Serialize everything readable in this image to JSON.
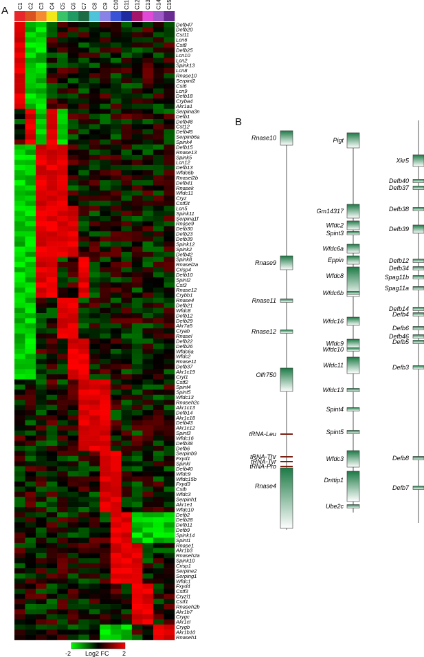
{
  "panels": {
    "a": "A",
    "b": "B"
  },
  "heatmap": {
    "columns": [
      "C1",
      "C2",
      "C3",
      "C4",
      "C5",
      "C6",
      "C7",
      "C8",
      "C9",
      "C10",
      "C11",
      "C12",
      "C13",
      "C14",
      "C15"
    ],
    "column_colors": [
      "#e8262b",
      "#d9521f",
      "#f58a32",
      "#f2e718",
      "#39c46a",
      "#1f9a63",
      "#1c6b44",
      "#4fc3d9",
      "#8a83e6",
      "#3a53d6",
      "#1e2aa0",
      "#a3156b",
      "#e04ad6",
      "#9e5bc8",
      "#6a2b93"
    ],
    "rows": [
      "Defb47",
      "Defb20",
      "Cst11",
      "Lcn6",
      "Cst8",
      "Defb25",
      "Lcn10",
      "Lcn2",
      "Spink13",
      "Lcn8",
      "Rnase10",
      "Serpinf2",
      "Cst6",
      "Lcn9",
      "Defb18",
      "Cryba4",
      "Akr1a1",
      "Serpina3n",
      "Defb1",
      "Defb48",
      "Cst12",
      "Defb45",
      "Serpinb6a",
      "Spink4",
      "Defb15",
      "Rnase13",
      "Spink5",
      "Lcn12",
      "Defb13",
      "Wfdc6b",
      "Rnasel2b",
      "Defb41",
      "Rnasek",
      "Wfdc11",
      "Cryz",
      "Cstf2t",
      "Lcn5",
      "Spink11",
      "Serpina1f",
      "Rnase9",
      "Defb30",
      "Defb23",
      "Defb39",
      "Spink12",
      "Spink2",
      "Defb42",
      "Spink8",
      "Rnasel2a",
      "Crisp4",
      "Defb10",
      "Spint2",
      "Cst3",
      "Rnase12",
      "Crybb1",
      "Rnase4",
      "Defb21",
      "Wfdc8",
      "Defb12",
      "Defb29",
      "Akr7a5",
      "Cryab",
      "Rnasel",
      "Defb22",
      "Defb26",
      "Wfdc6a",
      "Wfdc2",
      "Rnase11",
      "Defb37",
      "Akr1c19",
      "Cryl1",
      "Cstf2",
      "Spint4",
      "Spint5",
      "Wfdc13",
      "Rnaseh2c",
      "Akr1c13",
      "Defb14",
      "Akr1c18",
      "Defb43",
      "Akr1c12",
      "Spint3",
      "Wfdc16",
      "Defb38",
      "Defb6",
      "Serpinb9",
      "Fxyd1",
      "Spinkl",
      "Defb40",
      "Wfdc9",
      "Wfdc15b",
      "Fxyd3",
      "Cstb",
      "Wfdc3",
      "Serpinh1",
      "Akr1e1",
      "Wfdc10",
      "Defb2",
      "Defb28",
      "Defb11",
      "Defb9",
      "Spink14",
      "Spint1",
      "Rnase1",
      "Akr1b3",
      "Rnaseh2a",
      "Spink10",
      "Crisp1",
      "Serpine2",
      "Serping1",
      "Wfdc1",
      "Fxyd4",
      "Cstf3",
      "Cryzl1",
      "Cstf1",
      "Rnaseh2b",
      "Akr1b7",
      "Crygc",
      "Akr1cl",
      "Crygb",
      "Akr1b10",
      "Rnaseh1"
    ],
    "legend": {
      "min_label": "-2",
      "max_label": "2",
      "title": "Log2 FC",
      "min_color": "#00ff00",
      "mid_color": "#000000",
      "max_color": "#ff0000"
    }
  },
  "loci": [
    {
      "genes": [
        "Rnase10",
        "Rnase9",
        "Rnase11",
        "Rnase12",
        "Olfr750",
        "tRNA-Leu",
        "tRNA-Thr",
        "tRNA-Tyr",
        "tRNA-Pro",
        "Rnase4"
      ]
    },
    {
      "genes": [
        "Pigt",
        "Gm14317",
        "Wfdc2",
        "Spint3",
        "Wfdc6a",
        "Eppin",
        "Wfdc8",
        "Wfdc6b",
        "Wfdc16",
        "Wfdc9",
        "Wfdc10",
        "Wfdc11",
        "Wfdc13",
        "Spint4",
        "Spint5",
        "Wfdc3",
        "Dnttip1",
        "Ube2c"
      ]
    },
    {
      "genes": [
        "Xkr5",
        "Defb40",
        "Defb37",
        "Defb38",
        "Defb39",
        "Defb12",
        "Defb34",
        "Spag11b",
        "Spag11a",
        "Defb14",
        "Defb4",
        "Defb6",
        "Defb46",
        "Defb5",
        "Defb3",
        "Defb8",
        "Defb7"
      ]
    }
  ],
  "colors": {
    "gene_box_dark": "#1c7a45",
    "gene_box_light": "#ffffff",
    "trna_color": "#7a1f12",
    "line_color": "#555555"
  }
}
